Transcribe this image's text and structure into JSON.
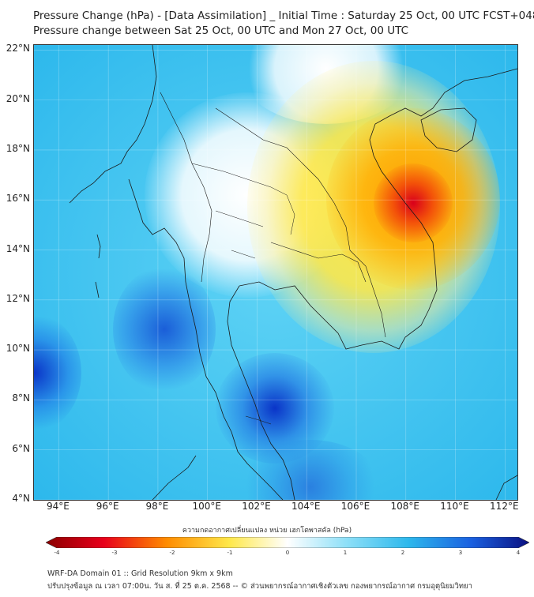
{
  "title_line1": "Pressure Change (hPa) - [Data Assimilation] _ Initial Time : Saturday 25 Oct, 00 UTC FCST+048",
  "title_line2": "Pressure change between Sat 25 Oct, 00 UTC and Mon 27 Oct, 00 UTC",
  "map": {
    "lon_range": [
      93,
      112.5
    ],
    "lat_range": [
      4,
      22.2
    ],
    "x_ticks": [
      "94°E",
      "96°E",
      "98°E",
      "100°E",
      "102°E",
      "104°E",
      "106°E",
      "108°E",
      "110°E",
      "112°E"
    ],
    "y_ticks": [
      "22°N",
      "20°N",
      "18°N",
      "16°N",
      "14°N",
      "12°N",
      "10°N",
      "8°N",
      "6°N",
      "4°N"
    ],
    "field": "pressure change (hPa)",
    "colors": {
      "strong_fall": "#d9001b",
      "moderate_fall": "#ff9a00",
      "weak_fall": "#ffe84a",
      "neutral": "#ffffff",
      "weak_rise": "#5fd3f5",
      "moderate_rise": "#2db8ec",
      "strong_rise": "#0a34c8"
    }
  },
  "colorbar": {
    "title": "ความกดอากาศเปลี่ยนแปลง หน่วย เฮกโตพาสคัล (hPa)",
    "ticks": [
      "-4",
      "-3",
      "-2",
      "-1",
      "0",
      "1",
      "2",
      "3",
      "4"
    ]
  },
  "footer_line1": "WRF-DA Domain 01 :: Grid Resolution 9km x 9km",
  "footer_line2": "ปรับปรุงข้อมูล ณ เวลา 07:00น. วัน ส. ที่ 25 ต.ค. 2568 -- © ส่วนพยากรณ์อากาศเชิงตัวเลข กองพยากรณ์อากาศ กรมอุตุนิยมวิทยา"
}
